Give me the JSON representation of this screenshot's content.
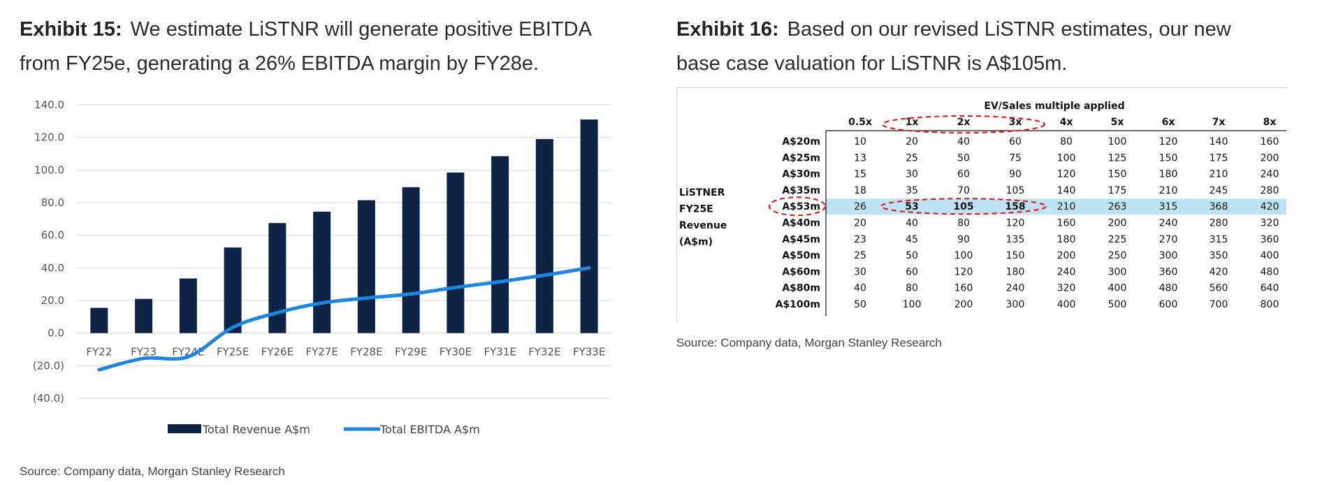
{
  "exhibit15": {
    "label": "Exhibit 15:",
    "title_line1": "We estimate LiSTNR will generate positive EBITDA",
    "title_line2": "from FY25e, generating a 26% EBITDA margin by FY28e.",
    "source": "Source: Company data, Morgan Stanley Research"
  },
  "exhibit16": {
    "label": "Exhibit 16:",
    "title_line1": "Based on our revised LiSTNR estimates, our new",
    "title_line2": "base case valuation for LiSTNR is A$105m.",
    "source": "Source: Company data, Morgan Stanley Research"
  },
  "chart_data": [
    {
      "type": "bar",
      "categories": [
        "FY22",
        "FY23",
        "FY24E",
        "FY25E",
        "FY26E",
        "FY27E",
        "FY28E",
        "FY29E",
        "FY30E",
        "FY31E",
        "FY32E",
        "FY33E"
      ],
      "series": [
        {
          "name": "Total Revenue  A$m",
          "type": "bar",
          "color": "#0d2447",
          "values": [
            15.5,
            21,
            33.5,
            52.5,
            67.5,
            74.5,
            81.5,
            89.5,
            98.5,
            108.5,
            119,
            131
          ]
        },
        {
          "name": "Total EBITDA  A$m",
          "type": "line",
          "color": "#1e86e0",
          "values": [
            -22.5,
            -15.5,
            -14.5,
            3.5,
            12.5,
            18.5,
            21.5,
            24,
            28,
            31.5,
            35.5,
            40
          ]
        }
      ],
      "yticks": [
        "140.0",
        "120.0",
        "100.0",
        "80.0",
        "60.0",
        "40.0",
        "20.0",
        "0.0",
        "(20.0)",
        "(40.0)"
      ],
      "ylim": [
        -40,
        140
      ],
      "grid": true,
      "legend_position": "bottom"
    },
    {
      "type": "table",
      "header_title": "EV/Sales multiple applied",
      "columns": [
        "0.5x",
        "1x",
        "2x",
        "3x",
        "4x",
        "5x",
        "6x",
        "7x",
        "8x"
      ],
      "row_group_label": [
        "LiSTNER",
        "FY25E",
        "Revenue",
        "(A$m)"
      ],
      "rows": [
        {
          "label": "A$20m",
          "values": [
            "10",
            "20",
            "40",
            "60",
            "80",
            "100",
            "120",
            "140",
            "160"
          ]
        },
        {
          "label": "A$25m",
          "values": [
            "13",
            "25",
            "50",
            "75",
            "100",
            "125",
            "150",
            "175",
            "200"
          ]
        },
        {
          "label": "A$30m",
          "values": [
            "15",
            "30",
            "60",
            "90",
            "120",
            "150",
            "180",
            "210",
            "240"
          ]
        },
        {
          "label": "A$35m",
          "values": [
            "18",
            "35",
            "70",
            "105",
            "140",
            "175",
            "210",
            "245",
            "280"
          ]
        },
        {
          "label": "A$53m",
          "values": [
            "26",
            "53",
            "105",
            "158",
            "210",
            "263",
            "315",
            "368",
            "420"
          ],
          "highlight": true
        },
        {
          "label": "A$40m",
          "values": [
            "20",
            "40",
            "80",
            "120",
            "160",
            "200",
            "240",
            "280",
            "320"
          ]
        },
        {
          "label": "A$45m",
          "values": [
            "23",
            "45",
            "90",
            "135",
            "180",
            "225",
            "270",
            "315",
            "360"
          ]
        },
        {
          "label": "A$50m",
          "values": [
            "25",
            "50",
            "100",
            "150",
            "200",
            "250",
            "300",
            "350",
            "400"
          ]
        },
        {
          "label": "A$60m",
          "values": [
            "30",
            "60",
            "120",
            "180",
            "240",
            "300",
            "360",
            "420",
            "480"
          ]
        },
        {
          "label": "A$80m",
          "values": [
            "40",
            "80",
            "160",
            "240",
            "320",
            "400",
            "480",
            "560",
            "640"
          ]
        },
        {
          "label": "A$100m",
          "values": [
            "50",
            "100",
            "200",
            "300",
            "400",
            "500",
            "600",
            "700",
            "800"
          ]
        }
      ],
      "highlight_color": "#bde3f5",
      "circle_color": "#e02020"
    }
  ]
}
